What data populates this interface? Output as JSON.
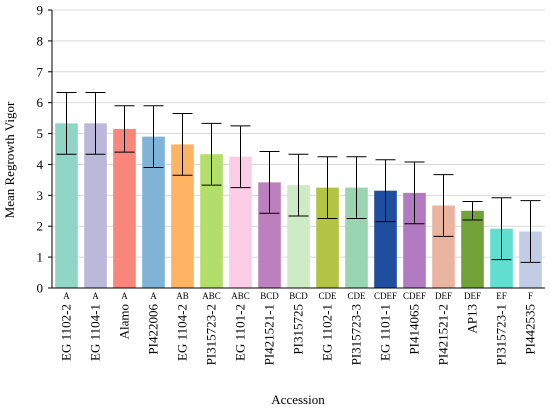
{
  "chart_data": {
    "type": "bar",
    "title": "",
    "xlabel": "Accession",
    "ylabel": "Mean Regrowth Vigor",
    "ylim": [
      0,
      9
    ],
    "yticks": [
      0,
      1,
      2,
      3,
      4,
      5,
      6,
      7,
      8,
      9
    ],
    "grid": true,
    "categories": [
      "EG 1102-2",
      "EG 1104-1",
      "Alamo",
      "PI422006",
      "EG 1104-2",
      "PI315723-2",
      "EG 1101-2",
      "PI421521-1",
      "PI315725",
      "EG 1102-1",
      "PI315723-3",
      "EG 1101-1",
      "PI414065",
      "PI421521-2",
      "AP13",
      "PI315723-1",
      "PI442535"
    ],
    "values": [
      5.33,
      5.33,
      5.15,
      4.9,
      4.65,
      4.33,
      4.25,
      3.42,
      3.33,
      3.25,
      3.25,
      3.15,
      3.08,
      2.67,
      2.5,
      1.92,
      1.83
    ],
    "error": [
      1.0,
      1.0,
      0.75,
      1.0,
      1.0,
      1.0,
      1.0,
      1.0,
      1.0,
      1.0,
      1.0,
      1.0,
      1.0,
      1.0,
      0.3,
      1.0,
      1.0
    ],
    "significance": [
      "A",
      "A",
      "A",
      "A",
      "AB",
      "ABC",
      "ABC",
      "BCD",
      "BCD",
      "CDE",
      "CDE",
      "CDEF",
      "CDEF",
      "DEF",
      "DEF",
      "EF",
      "F"
    ],
    "colors": [
      "#8fd6c6",
      "#bbb8db",
      "#f9867a",
      "#80b3d8",
      "#fdb462",
      "#b3de69",
      "#fbcce5",
      "#bc80bd",
      "#cdebc5",
      "#b2c443",
      "#99d5b1",
      "#1f4e9e",
      "#b27ac1",
      "#e9b4a0",
      "#72a33b",
      "#60dfd0",
      "#c2cde5"
    ]
  }
}
